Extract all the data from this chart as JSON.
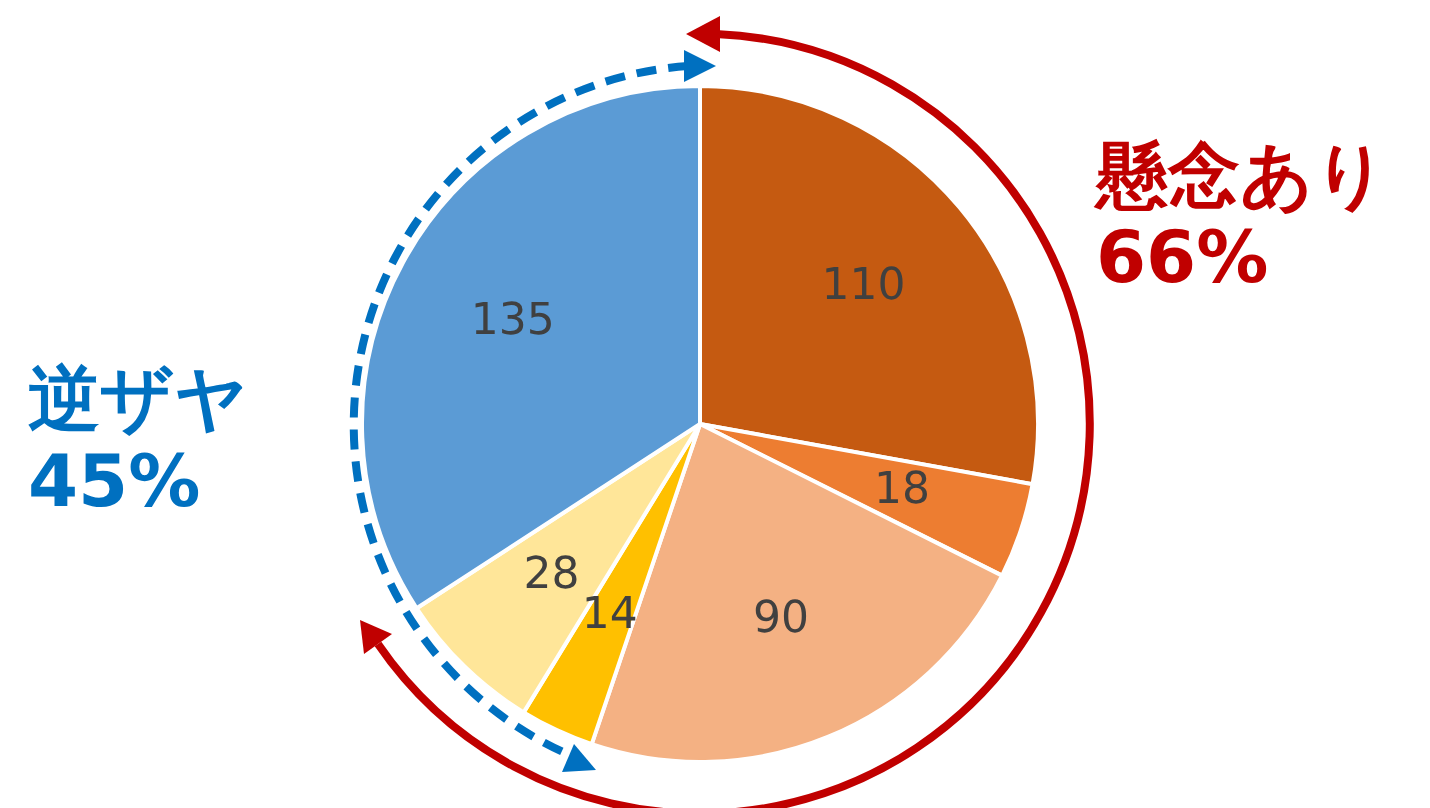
{
  "chart_data": {
    "type": "pie",
    "categories": [
      null,
      null,
      null,
      null,
      null,
      null
    ],
    "values": [
      110,
      18,
      90,
      14,
      28,
      135
    ],
    "colors": [
      "#c55a11",
      "#ed7d31",
      "#f4b183",
      "#ffc000",
      "#ffe699",
      "#5b9bd5"
    ],
    "data_labels": true,
    "legend": false,
    "annotations": [
      "懸念あり\n66%",
      "逆ザヤ\n45%"
    ]
  }
}
